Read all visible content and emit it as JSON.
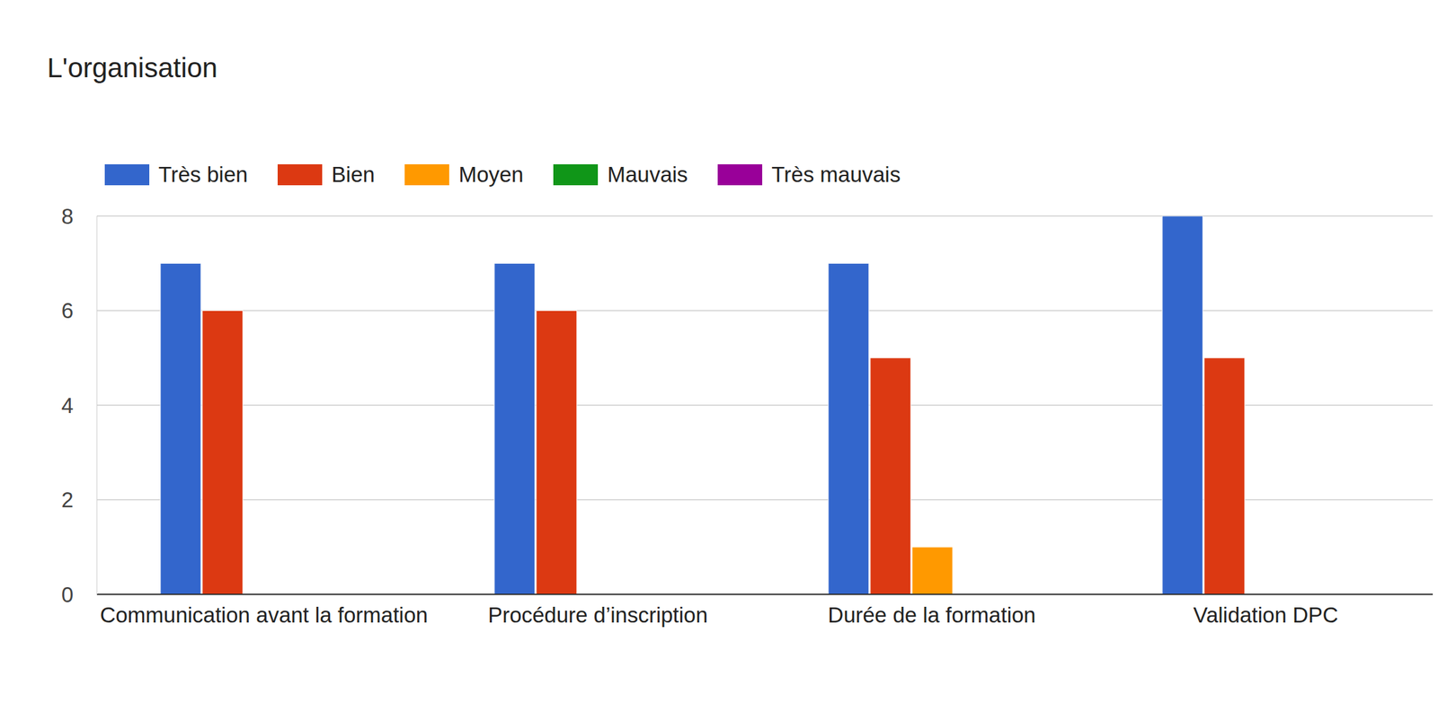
{
  "chart_data": {
    "type": "bar",
    "title": "L'organisation",
    "categories": [
      "Communication avant la formation",
      "Procédure d’inscription",
      "Durée de la formation",
      "Validation DPC"
    ],
    "series": [
      {
        "name": "Très bien",
        "color": "#3366cc",
        "values": [
          7,
          7,
          7,
          8
        ]
      },
      {
        "name": "Bien",
        "color": "#dc3912",
        "values": [
          6,
          6,
          5,
          5
        ]
      },
      {
        "name": "Moyen",
        "color": "#ff9900",
        "values": [
          0,
          0,
          1,
          0
        ]
      },
      {
        "name": "Mauvais",
        "color": "#109618",
        "values": [
          0,
          0,
          0,
          0
        ]
      },
      {
        "name": "Très mauvais",
        "color": "#990099",
        "values": [
          0,
          0,
          0,
          0
        ]
      }
    ],
    "ylim": [
      0,
      8
    ],
    "yticks": [
      0,
      2,
      4,
      6,
      8
    ],
    "grid": true,
    "legend": "top-left"
  }
}
